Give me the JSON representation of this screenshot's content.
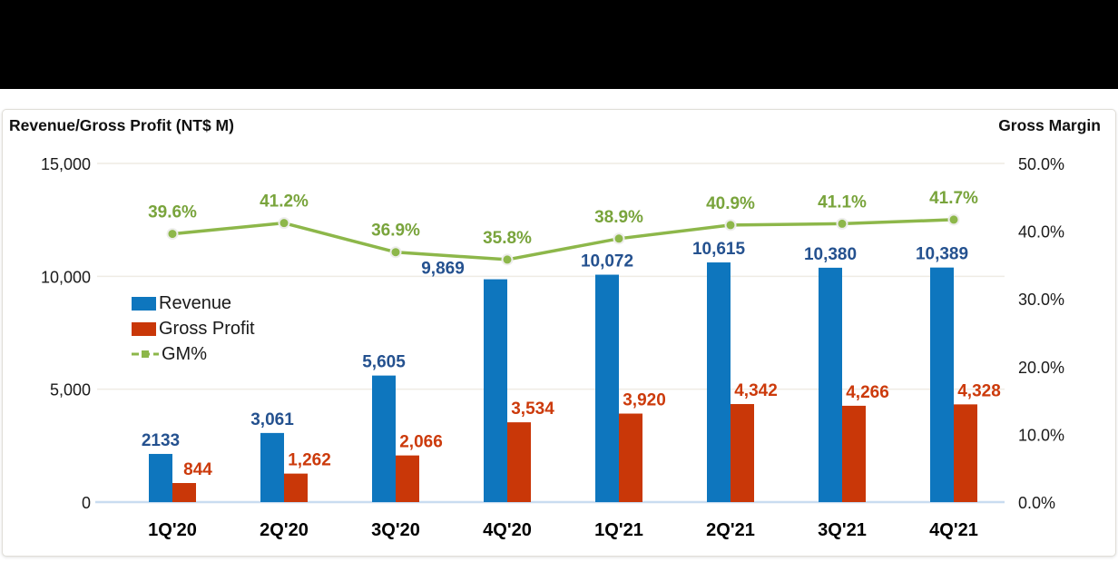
{
  "chart": {
    "left_axis_title": "Revenue/Gross Profit (NT$ M)",
    "right_axis_title": "Gross Margin",
    "colors": {
      "grid_line": "#efece4",
      "axis_line": "#c9dcf0",
      "tick_text": "#1a1a1a",
      "category_text": "#000000",
      "marker_ring": "#ededeb"
    }
  },
  "chart_data": {
    "type": "combo-bar-line",
    "title": "Revenue/Gross Profit (NT$ M) with Gross Margin",
    "categories": [
      "1Q'20",
      "2Q'20",
      "3Q'20",
      "4Q'20",
      "1Q'21",
      "2Q'21",
      "3Q'21",
      "4Q'21"
    ],
    "series": [
      {
        "name": "Revenue",
        "type": "bar",
        "axis": "left",
        "color": "#0e76be",
        "label_color": "#24518f",
        "values": [
          2133,
          3061,
          5605,
          9869,
          10072,
          10615,
          10380,
          10389
        ],
        "labels": [
          "2133",
          "3,061",
          "5,605",
          "9,869",
          "10,072",
          "10,615",
          "10,380",
          "10,389"
        ]
      },
      {
        "name": "Gross Profit",
        "type": "bar",
        "axis": "left",
        "color": "#c93708",
        "label_color": "#cc3a0b",
        "values": [
          844,
          1262,
          2066,
          3534,
          3920,
          4342,
          4266,
          4328
        ],
        "labels": [
          "844",
          "1,262",
          "2,066",
          "3,534",
          "3,920",
          "4,342",
          "4,266",
          "4,328"
        ]
      },
      {
        "name": "GM%",
        "type": "line",
        "axis": "right",
        "color": "#8db74a",
        "label_color": "#79a43c",
        "values": [
          39.6,
          41.2,
          36.9,
          35.8,
          38.9,
          40.9,
          41.1,
          41.7
        ],
        "labels": [
          "39.6%",
          "41.2%",
          "36.9%",
          "35.8%",
          "38.9%",
          "40.9%",
          "41.1%",
          "41.7%"
        ]
      }
    ],
    "left_axis": {
      "label": "Revenue/Gross Profit (NT$ M)",
      "min": 0,
      "max": 15000,
      "ticks": [
        {
          "v": 0,
          "label": "0"
        },
        {
          "v": 5000,
          "label": "5,000"
        },
        {
          "v": 10000,
          "label": "10,000"
        },
        {
          "v": 15000,
          "label": "15,000"
        }
      ]
    },
    "right_axis": {
      "label": "Gross Margin",
      "min": 0,
      "max": 50,
      "ticks": [
        {
          "v": 0,
          "label": "0.0%"
        },
        {
          "v": 10,
          "label": "10.0%"
        },
        {
          "v": 20,
          "label": "20.0%"
        },
        {
          "v": 30,
          "label": "30.0%"
        },
        {
          "v": 40,
          "label": "40.0%"
        },
        {
          "v": 50,
          "label": "50.0%"
        }
      ]
    },
    "gridlines": [
      5000,
      10000,
      15000
    ],
    "grid": true,
    "legend_position": "inside-left",
    "legend": [
      "Revenue",
      "Gross Profit",
      "GM%"
    ]
  }
}
